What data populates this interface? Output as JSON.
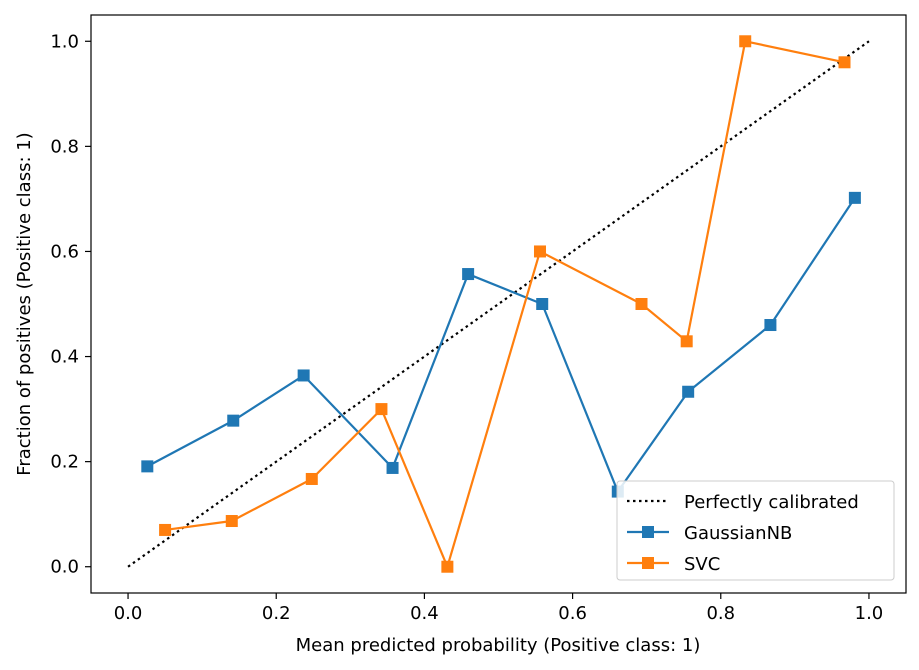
{
  "chart_data": {
    "type": "line",
    "xlabel": "Mean predicted probability (Positive class: 1)",
    "ylabel": "Fraction of positives (Positive class: 1)",
    "xlim": [
      -0.05,
      1.05
    ],
    "ylim": [
      -0.05,
      1.05
    ],
    "xticks": [
      0.0,
      0.2,
      0.4,
      0.6,
      0.8,
      1.0
    ],
    "yticks": [
      0.0,
      0.2,
      0.4,
      0.6,
      0.8,
      1.0
    ],
    "xtick_labels": [
      "0.0",
      "0.2",
      "0.4",
      "0.6",
      "0.8",
      "1.0"
    ],
    "ytick_labels": [
      "0.0",
      "0.2",
      "0.4",
      "0.6",
      "0.8",
      "1.0"
    ],
    "grid": false,
    "legend_position": "lower-right",
    "reference": {
      "name": "Perfectly calibrated",
      "x": [
        0,
        1
      ],
      "y": [
        0,
        1
      ],
      "color": "#000000",
      "style": "dotted"
    },
    "series": [
      {
        "name": "GaussianNB",
        "color": "#1f77b4",
        "marker": "square",
        "x": [
          0.026,
          0.142,
          0.237,
          0.357,
          0.459,
          0.559,
          0.661,
          0.756,
          0.867,
          0.981
        ],
        "y": [
          0.191,
          0.278,
          0.364,
          0.188,
          0.557,
          0.5,
          0.143,
          0.333,
          0.46,
          0.702
        ]
      },
      {
        "name": "SVC",
        "color": "#ff7f0e",
        "marker": "square",
        "x": [
          0.05,
          0.14,
          0.248,
          0.342,
          0.431,
          0.556,
          0.693,
          0.754,
          0.833,
          0.967
        ],
        "y": [
          0.07,
          0.087,
          0.167,
          0.3,
          0.0,
          0.6,
          0.5,
          0.429,
          1.0,
          0.96
        ]
      }
    ]
  }
}
